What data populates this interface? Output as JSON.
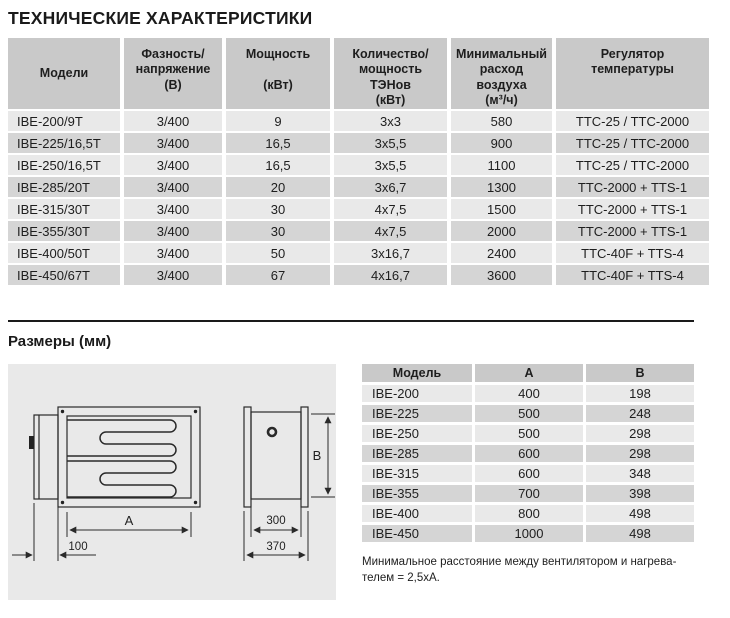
{
  "page": {
    "title": "ТЕХНИЧЕСКИЕ ХАРАКТЕРИСТИКИ",
    "dimensions_section_title": "Размеры (мм)",
    "footnote": "Минимальное расстояние между вентилятором и нагрева-\nтелем = 2,5хА."
  },
  "spec_table": {
    "headers": [
      "Модели",
      "Фазность/\nнапряжение\n(В)",
      "Мощность\n\n(кВт)",
      "Количество/\nмощность\nТЭНов\n(кВт)",
      "Минимальный\nрасход\nвоздуха\n(м³/ч)",
      "Регулятор\nтемпературы"
    ],
    "rows": [
      [
        "IBE-200/9T",
        "3/400",
        "9",
        "3х3",
        "580",
        "TTC-25 / TTC-2000"
      ],
      [
        "IBE-225/16,5T",
        "3/400",
        "16,5",
        "3х5,5",
        "900",
        "TTC-25 / TTC-2000"
      ],
      [
        "IBE-250/16,5T",
        "3/400",
        "16,5",
        "3х5,5",
        "1100",
        "TTC-25 / TTC-2000"
      ],
      [
        "IBE-285/20T",
        "3/400",
        "20",
        "3х6,7",
        "1300",
        "TTC-2000 + TTS-1"
      ],
      [
        "IBE-315/30T",
        "3/400",
        "30",
        "4х7,5",
        "1500",
        "TTC-2000 + TTS-1"
      ],
      [
        "IBE-355/30T",
        "3/400",
        "30",
        "4х7,5",
        "2000",
        "TTC-2000 + TTS-1"
      ],
      [
        "IBE-400/50T",
        "3/400",
        "50",
        "3х16,7",
        "2400",
        "TTC-40F + TTS-4"
      ],
      [
        "IBE-450/67T",
        "3/400",
        "67",
        "4х16,7",
        "3600",
        "TTC-40F + TTS-4"
      ]
    ]
  },
  "dimensions_table": {
    "headers": [
      "Модель",
      "A",
      "B"
    ],
    "rows": [
      [
        "IBE-200",
        "400",
        "198"
      ],
      [
        "IBE-225",
        "500",
        "248"
      ],
      [
        "IBE-250",
        "500",
        "298"
      ],
      [
        "IBE-285",
        "600",
        "298"
      ],
      [
        "IBE-315",
        "600",
        "348"
      ],
      [
        "IBE-355",
        "700",
        "398"
      ],
      [
        "IBE-400",
        "800",
        "498"
      ],
      [
        "IBE-450",
        "1000",
        "498"
      ]
    ]
  },
  "drawing": {
    "labels": {
      "length_a": "A",
      "height_b": "B",
      "control_box_depth": "100",
      "inner_width": "300",
      "outer_width": "370"
    }
  },
  "colors": {
    "header_cell": "#c9c9c9",
    "row_light": "#e9e9e9",
    "row_dark": "#d5d5d5",
    "text": "#1e1e1e",
    "line": "#2a2a2a"
  }
}
